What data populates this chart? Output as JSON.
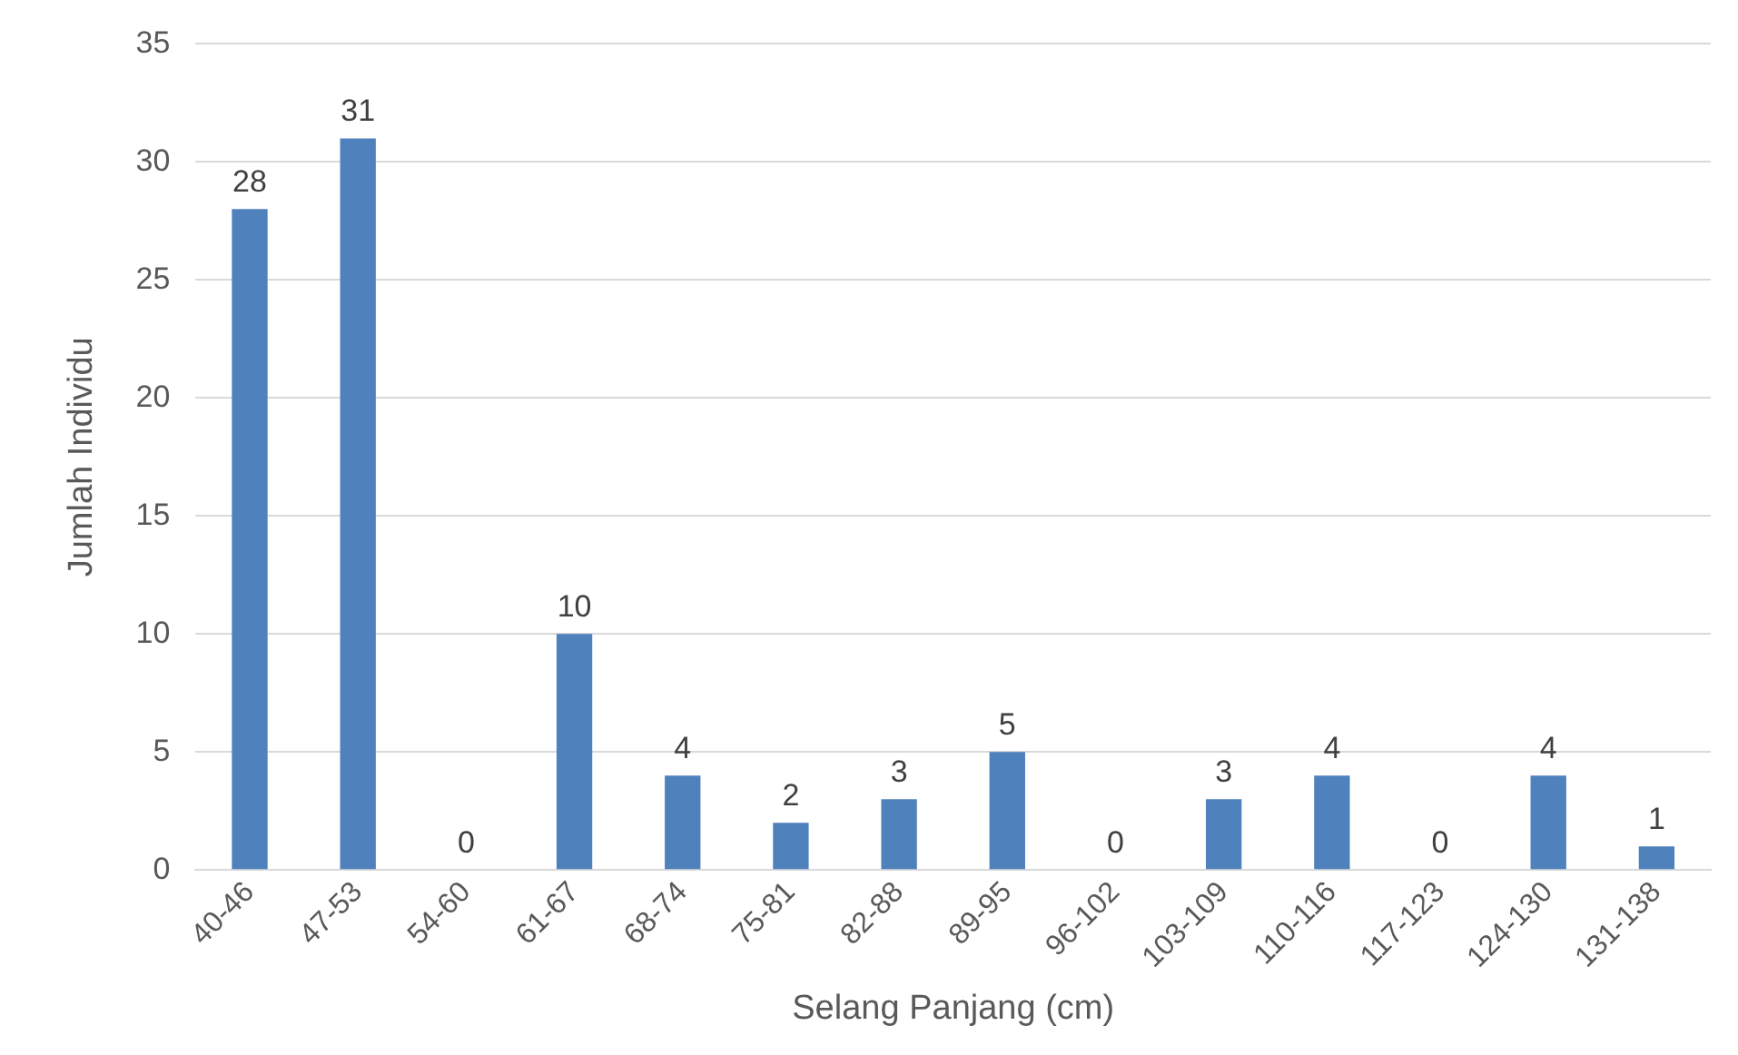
{
  "chart_data": {
    "type": "bar",
    "xlabel": "Selang Panjang (cm)",
    "ylabel": "Jumlah Individu",
    "categories": [
      "40-46",
      "47-53",
      "54-60",
      "61-67",
      "68-74",
      "75-81",
      "82-88",
      "89-95",
      "96-102",
      "103-109",
      "110-116",
      "117-123",
      "124-130",
      "131-138"
    ],
    "values": [
      28,
      31,
      0,
      10,
      4,
      2,
      3,
      5,
      0,
      3,
      4,
      0,
      4,
      1
    ],
    "color": "#4f81bd",
    "ylim": [
      0,
      35
    ],
    "yticks": [
      0,
      5,
      10,
      15,
      20,
      25,
      30,
      35
    ],
    "grid": "y",
    "data_labels": true,
    "legend": false
  }
}
